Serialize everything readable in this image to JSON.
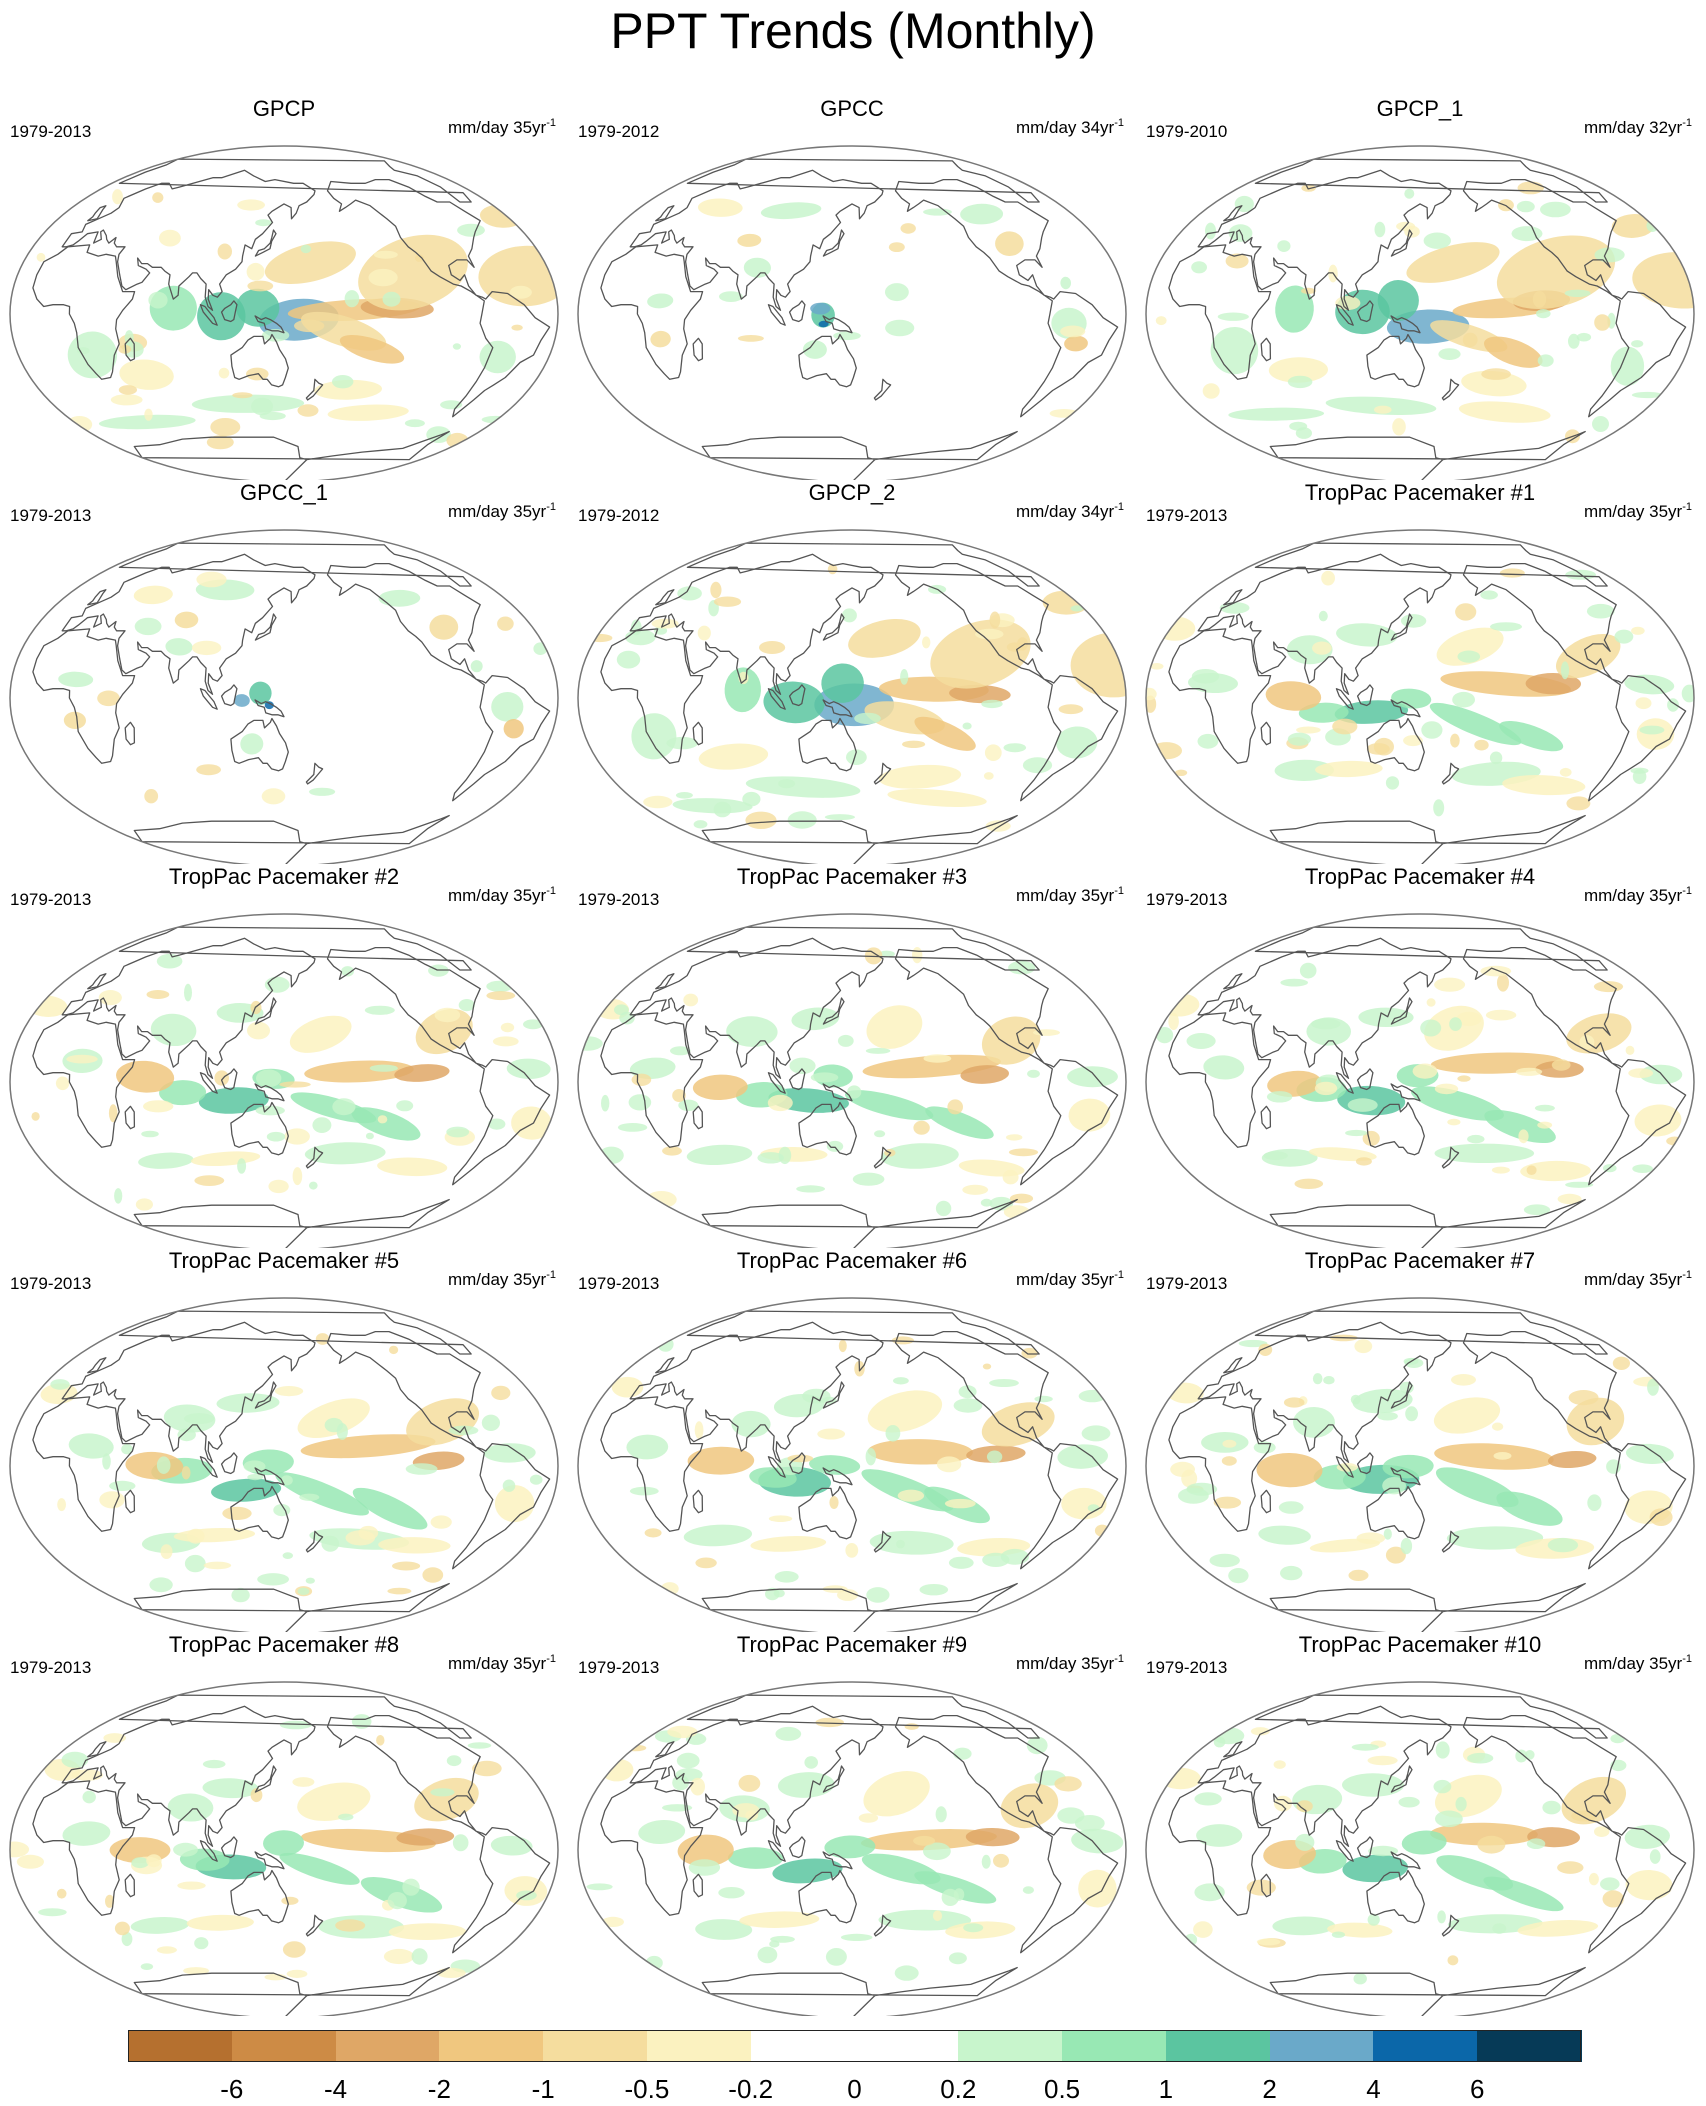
{
  "title": "PPT Trends (Monthly)",
  "colors": {
    "outline": "#777777",
    "coast": "#555555"
  },
  "chart_data": {
    "type": "heatmap",
    "description_kind": "map grid",
    "panels": [
      {
        "name": "GPCP",
        "period": "1979-2013",
        "unit": "mm/day 35yr",
        "unit_sup": "-1",
        "land_only": false,
        "style": "obs"
      },
      {
        "name": "GPCC",
        "period": "1979-2012",
        "unit": "mm/day 34yr",
        "unit_sup": "-1",
        "land_only": true,
        "style": "obs"
      },
      {
        "name": "GPCP_1",
        "period": "1979-2010",
        "unit": "mm/day 32yr",
        "unit_sup": "-1",
        "land_only": false,
        "style": "obs"
      },
      {
        "name": "GPCC_1",
        "period": "1979-2013",
        "unit": "mm/day 35yr",
        "unit_sup": "-1",
        "land_only": true,
        "style": "obs"
      },
      {
        "name": "GPCP_2",
        "period": "1979-2012",
        "unit": "mm/day 34yr",
        "unit_sup": "-1",
        "land_only": false,
        "style": "obs"
      },
      {
        "name": "TropPac Pacemaker #1",
        "period": "1979-2013",
        "unit": "mm/day 35yr",
        "unit_sup": "-1",
        "land_only": false,
        "style": "model"
      },
      {
        "name": "TropPac Pacemaker #2",
        "period": "1979-2013",
        "unit": "mm/day 35yr",
        "unit_sup": "-1",
        "land_only": false,
        "style": "model"
      },
      {
        "name": "TropPac Pacemaker #3",
        "period": "1979-2013",
        "unit": "mm/day 35yr",
        "unit_sup": "-1",
        "land_only": false,
        "style": "model"
      },
      {
        "name": "TropPac Pacemaker #4",
        "period": "1979-2013",
        "unit": "mm/day 35yr",
        "unit_sup": "-1",
        "land_only": false,
        "style": "model"
      },
      {
        "name": "TropPac Pacemaker #5",
        "period": "1979-2013",
        "unit": "mm/day 35yr",
        "unit_sup": "-1",
        "land_only": false,
        "style": "model"
      },
      {
        "name": "TropPac Pacemaker #6",
        "period": "1979-2013",
        "unit": "mm/day 35yr",
        "unit_sup": "-1",
        "land_only": false,
        "style": "model"
      },
      {
        "name": "TropPac Pacemaker #7",
        "period": "1979-2013",
        "unit": "mm/day 35yr",
        "unit_sup": "-1",
        "land_only": false,
        "style": "model"
      },
      {
        "name": "TropPac Pacemaker #8",
        "period": "1979-2013",
        "unit": "mm/day 35yr",
        "unit_sup": "-1",
        "land_only": false,
        "style": "model"
      },
      {
        "name": "TropPac Pacemaker #9",
        "period": "1979-2013",
        "unit": "mm/day 35yr",
        "unit_sup": "-1",
        "land_only": false,
        "style": "model"
      },
      {
        "name": "TropPac Pacemaker #10",
        "period": "1979-2013",
        "unit": "mm/day 35yr",
        "unit_sup": "-1",
        "land_only": false,
        "style": "model"
      }
    ],
    "colorbar": {
      "levels": [
        "-6",
        "-4",
        "-2",
        "-1",
        "-0.5",
        "-0.2",
        "0",
        "0.2",
        "0.5",
        "1",
        "2",
        "4",
        "6"
      ],
      "colors": [
        "#b5702f",
        "#cd8b45",
        "#dfa766",
        "#f0c77f",
        "#f5dd9e",
        "#fbf2c0",
        "#ffffff",
        "#ffffff",
        "#c8f5cc",
        "#98e8b4",
        "#5bc5a0",
        "#6aa9c9",
        "#0b67a9",
        "#063a57"
      ]
    }
  }
}
